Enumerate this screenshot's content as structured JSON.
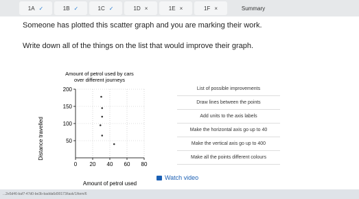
{
  "tabs": [
    {
      "label": "1A",
      "mark": "✓"
    },
    {
      "label": "1B",
      "mark": "✓"
    },
    {
      "label": "1C",
      "mark": "✓"
    },
    {
      "label": "1D",
      "mark": "×"
    },
    {
      "label": "1E",
      "mark": "×"
    },
    {
      "label": "1F",
      "mark": "×"
    },
    {
      "label": "Summary"
    }
  ],
  "question": [
    "Someone has plotted this scatter graph and you are marking their work.",
    "Write down all of the things on the list that would improve their graph."
  ],
  "chart_data": {
    "type": "scatter",
    "title": "Amount of petrol used by cars",
    "subtitle": "over different journeys",
    "xlabel": "Amount of petrol used",
    "ylabel": "Distance travelled",
    "x": [
      30,
      31,
      31,
      29,
      31,
      45
    ],
    "y": [
      178,
      145,
      120,
      95,
      65,
      40
    ],
    "xlim": [
      0,
      80
    ],
    "ylim": [
      0,
      200
    ],
    "xticks": [
      0,
      20,
      40,
      60,
      80
    ],
    "yticks": [
      50,
      100,
      150,
      200
    ],
    "grid": true,
    "color": "#333333"
  },
  "improvements": {
    "title": "List of possible improvements",
    "items": [
      "Draw lines between the points",
      "Add units to the axis labels",
      "Make the horizontal axis go up to 40",
      "Make the vertical axis go up to 400",
      "Make all the points different colours"
    ]
  },
  "video_button": "Watch video",
  "url": "...2e5d46-baf7-47d0-be3b-badda6d90173/task/1/item/6"
}
